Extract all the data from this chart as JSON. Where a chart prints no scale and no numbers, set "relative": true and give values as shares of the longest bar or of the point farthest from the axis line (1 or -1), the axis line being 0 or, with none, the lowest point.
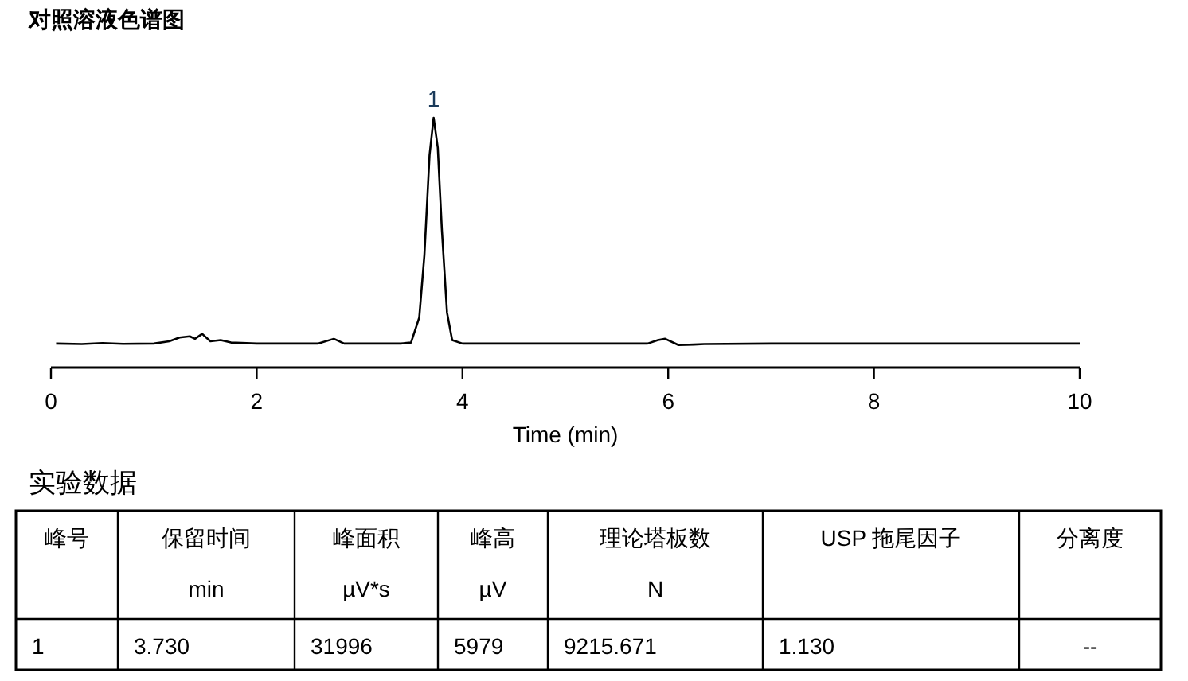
{
  "chart_data": [
    {
      "type": "line",
      "title": "对照溶液色谱图",
      "xlabel": "Time (min)",
      "relative": true,
      "xlim": [
        0,
        10
      ],
      "xticks": [
        0,
        2,
        4,
        6,
        8,
        10
      ],
      "tick_labels": "x",
      "series": [
        {
          "color": "#000000",
          "x": [
            0.05,
            0.3,
            0.5,
            0.7,
            1.0,
            1.15,
            1.25,
            1.35,
            1.4,
            1.47,
            1.55,
            1.65,
            1.75,
            2.0,
            2.6,
            2.75,
            2.85,
            3.4,
            3.5,
            3.58,
            3.63,
            3.68,
            3.72,
            3.76,
            3.8,
            3.85,
            3.9,
            4.0,
            5.8,
            5.9,
            5.97,
            6.1,
            6.25,
            6.35,
            7.0,
            10.0
          ],
          "values": [
            0.096,
            0.094,
            0.098,
            0.095,
            0.096,
            0.105,
            0.12,
            0.125,
            0.115,
            0.135,
            0.105,
            0.11,
            0.1,
            0.096,
            0.096,
            0.115,
            0.096,
            0.096,
            0.1,
            0.2,
            0.45,
            0.85,
            1.0,
            0.88,
            0.55,
            0.22,
            0.11,
            0.096,
            0.096,
            0.11,
            0.115,
            0.09,
            0.092,
            0.094,
            0.096,
            0.096
          ]
        }
      ],
      "annotations": [
        {
          "text": "1",
          "x": 3.72,
          "y": 1.0
        }
      ]
    },
    {
      "type": "other",
      "title": "实验数据",
      "annotations": [
        "峰号",
        "保留时间\nmin",
        "峰面积\nµV*s",
        "峰高\nµV",
        "理论塔板数\nN",
        "USP 拖尾因子",
        "分离度",
        "1",
        "3.730",
        "31996",
        "5979",
        "9215.671",
        "1.130",
        "--"
      ]
    }
  ]
}
